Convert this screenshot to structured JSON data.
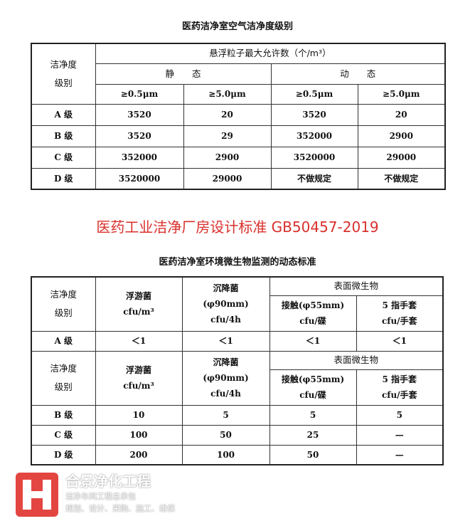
{
  "table1": {
    "title": "医药洁净室空气洁净度级别",
    "corner": "洁净度\n级别",
    "group": "悬浮粒子最大允许数（个/m³）",
    "static": "静　　态",
    "dynamic": "动　　态",
    "sizes": [
      "≥0.5μm",
      "≥5.0μm",
      "≥0.5μm",
      "≥5.0μm"
    ],
    "rows": [
      [
        "A 级",
        "3520",
        "20",
        "3520",
        "20"
      ],
      [
        "B 级",
        "3520",
        "29",
        "352000",
        "2900"
      ],
      [
        "C 级",
        "352000",
        "2900",
        "3520000",
        "29000"
      ],
      [
        "D 级",
        "3520000",
        "29000",
        "不做规定",
        "不做规定"
      ]
    ]
  },
  "red_title": "医药工业洁净厂房设计标准 GB50457-2019",
  "table2": {
    "title": "医药洁净室环境微生物监测的动态标准",
    "corner": "洁净度\n级别",
    "float": "浮游菌\ncfu/m³",
    "settle": "沉降菌\n(φ90mm)\ncfu/4h",
    "surface": "表面微生物",
    "contact": "接触(φ55mm)\ncfu/碟",
    "glove": "5 指手套\ncfu/手套",
    "row_a": [
      "A 级",
      "＜1",
      "＜1",
      "＜1",
      "＜1"
    ],
    "rows": [
      [
        "B 级",
        "10",
        "5",
        "5",
        "5"
      ],
      [
        "C 级",
        "100",
        "50",
        "25",
        "—"
      ],
      [
        "D 级",
        "200",
        "100",
        "50",
        "—"
      ]
    ]
  },
  "watermark": {
    "name": "合景净化工程",
    "line1": "洁净车间工程总承包",
    "line2": "规划、设计、采购、施工、维保"
  },
  "colors": {
    "red": "#d9302c",
    "logo": "#e0312d"
  }
}
